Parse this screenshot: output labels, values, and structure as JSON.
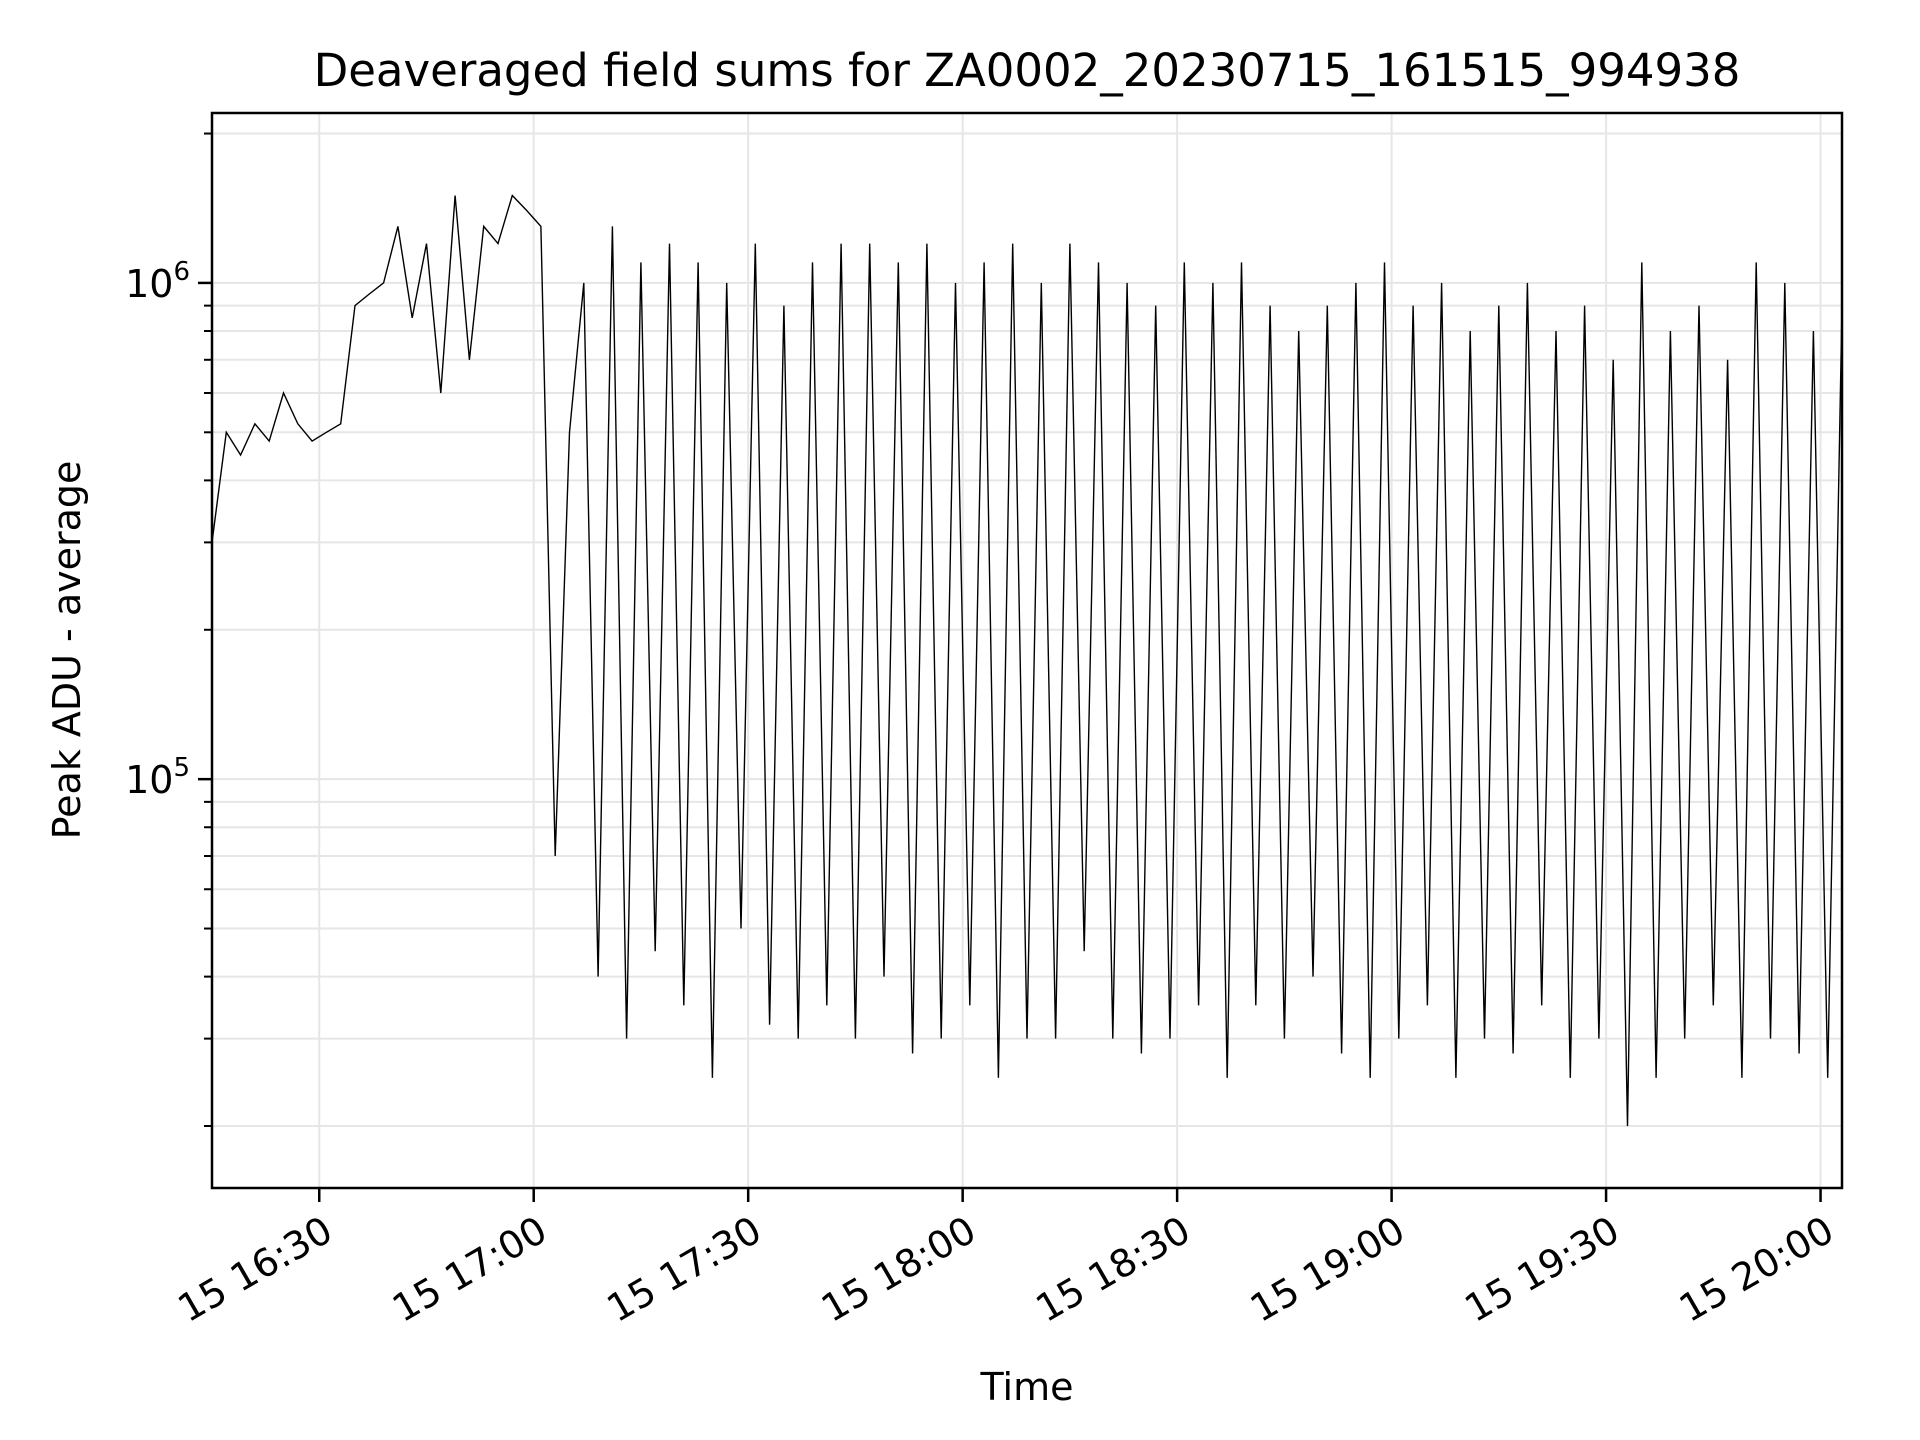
{
  "chart_data": {
    "type": "line",
    "title": "Deaveraged field sums for ZA0002_20230715_161515_994938",
    "xlabel": "Time",
    "ylabel": "Peak ADU - average",
    "xscale": "time",
    "yscale": "log",
    "xlim": [
      "2023-07-15T16:15",
      "2023-07-15T20:03"
    ],
    "ylim": [
      15000,
      2200000
    ],
    "x_ticks": [
      {
        "value": "2023-07-15T16:30",
        "label": "15 16:30"
      },
      {
        "value": "2023-07-15T17:00",
        "label": "15 17:00"
      },
      {
        "value": "2023-07-15T17:30",
        "label": "15 17:30"
      },
      {
        "value": "2023-07-15T18:00",
        "label": "15 18:00"
      },
      {
        "value": "2023-07-15T18:30",
        "label": "15 18:30"
      },
      {
        "value": "2023-07-15T19:00",
        "label": "15 19:00"
      },
      {
        "value": "2023-07-15T19:30",
        "label": "15 19:30"
      },
      {
        "value": "2023-07-15T20:00",
        "label": "15 20:00"
      }
    ],
    "y_ticks": [
      {
        "value": 100000,
        "base": "10",
        "exp": "5"
      },
      {
        "value": 1000000,
        "base": "10",
        "exp": "6"
      }
    ],
    "grid": true,
    "line_color": "#000000",
    "grid_color": "#e6e6e6",
    "series": [
      {
        "x": [
          "2023-07-15T16:15",
          "2023-07-15T16:17",
          "2023-07-15T16:19",
          "2023-07-15T16:21",
          "2023-07-15T16:23",
          "2023-07-15T16:25",
          "2023-07-15T16:27",
          "2023-07-15T16:29",
          "2023-07-15T16:31",
          "2023-07-15T16:33",
          "2023-07-15T16:35",
          "2023-07-15T16:37",
          "2023-07-15T16:39",
          "2023-07-15T16:41",
          "2023-07-15T16:43",
          "2023-07-15T16:45",
          "2023-07-15T16:47",
          "2023-07-15T16:49",
          "2023-07-15T16:51",
          "2023-07-15T16:53",
          "2023-07-15T16:55",
          "2023-07-15T16:57",
          "2023-07-15T16:59",
          "2023-07-15T17:01",
          "2023-07-15T17:03",
          "2023-07-15T17:05",
          "2023-07-15T17:07",
          "2023-07-15T17:09",
          "2023-07-15T17:11",
          "2023-07-15T17:13",
          "2023-07-15T17:15",
          "2023-07-15T17:17",
          "2023-07-15T17:19",
          "2023-07-15T17:21",
          "2023-07-15T17:23",
          "2023-07-15T17:25",
          "2023-07-15T17:27",
          "2023-07-15T17:29",
          "2023-07-15T17:31",
          "2023-07-15T17:33",
          "2023-07-15T17:35",
          "2023-07-15T17:37",
          "2023-07-15T17:39",
          "2023-07-15T17:41",
          "2023-07-15T17:43",
          "2023-07-15T17:45",
          "2023-07-15T17:47",
          "2023-07-15T17:49",
          "2023-07-15T17:51",
          "2023-07-15T17:53",
          "2023-07-15T17:55",
          "2023-07-15T17:57",
          "2023-07-15T17:59",
          "2023-07-15T18:01",
          "2023-07-15T18:03",
          "2023-07-15T18:05",
          "2023-07-15T18:07",
          "2023-07-15T18:09",
          "2023-07-15T18:11",
          "2023-07-15T18:13",
          "2023-07-15T18:15",
          "2023-07-15T18:17",
          "2023-07-15T18:19",
          "2023-07-15T18:21",
          "2023-07-15T18:23",
          "2023-07-15T18:25",
          "2023-07-15T18:27",
          "2023-07-15T18:29",
          "2023-07-15T18:31",
          "2023-07-15T18:33",
          "2023-07-15T18:35",
          "2023-07-15T18:37",
          "2023-07-15T18:39",
          "2023-07-15T18:41",
          "2023-07-15T18:43",
          "2023-07-15T18:45",
          "2023-07-15T18:47",
          "2023-07-15T18:49",
          "2023-07-15T18:51",
          "2023-07-15T18:53",
          "2023-07-15T18:55",
          "2023-07-15T18:57",
          "2023-07-15T18:59",
          "2023-07-15T19:01",
          "2023-07-15T19:03",
          "2023-07-15T19:05",
          "2023-07-15T19:07",
          "2023-07-15T19:09",
          "2023-07-15T19:11",
          "2023-07-15T19:13",
          "2023-07-15T19:15",
          "2023-07-15T19:17",
          "2023-07-15T19:19",
          "2023-07-15T19:21",
          "2023-07-15T19:23",
          "2023-07-15T19:25",
          "2023-07-15T19:27",
          "2023-07-15T19:29",
          "2023-07-15T19:31",
          "2023-07-15T19:33",
          "2023-07-15T19:35",
          "2023-07-15T19:37",
          "2023-07-15T19:39",
          "2023-07-15T19:41",
          "2023-07-15T19:43",
          "2023-07-15T19:45",
          "2023-07-15T19:47",
          "2023-07-15T19:49",
          "2023-07-15T19:51",
          "2023-07-15T19:53",
          "2023-07-15T19:55",
          "2023-07-15T19:57",
          "2023-07-15T19:59",
          "2023-07-15T20:01",
          "2023-07-15T20:03"
        ],
        "y": [
          300000,
          500000,
          450000,
          520000,
          480000,
          600000,
          520000,
          480000,
          500000,
          520000,
          900000,
          950000,
          1000000,
          1300000,
          850000,
          1200000,
          600000,
          1500000,
          700000,
          1300000,
          1200000,
          1500000,
          1400000,
          1300000,
          70000,
          500000,
          1000000,
          40000,
          1300000,
          30000,
          1100000,
          45000,
          1200000,
          35000,
          1100000,
          25000,
          1000000,
          50000,
          1200000,
          32000,
          900000,
          30000,
          1100000,
          35000,
          1200000,
          30000,
          1200000,
          40000,
          1100000,
          28000,
          1200000,
          30000,
          1000000,
          35000,
          1100000,
          25000,
          1200000,
          30000,
          1000000,
          30000,
          1200000,
          45000,
          1100000,
          30000,
          1000000,
          28000,
          900000,
          30000,
          1100000,
          35000,
          1000000,
          25000,
          1100000,
          35000,
          900000,
          30000,
          800000,
          40000,
          900000,
          28000,
          1000000,
          25000,
          1100000,
          30000,
          900000,
          35000,
          1000000,
          25000,
          800000,
          30000,
          900000,
          28000,
          1000000,
          35000,
          800000,
          25000,
          900000,
          30000,
          700000,
          20000,
          1100000,
          25000,
          800000,
          30000,
          900000,
          35000,
          700000,
          25000,
          1100000,
          30000,
          1000000,
          28000,
          800000,
          25000,
          900000
        ]
      }
    ]
  }
}
